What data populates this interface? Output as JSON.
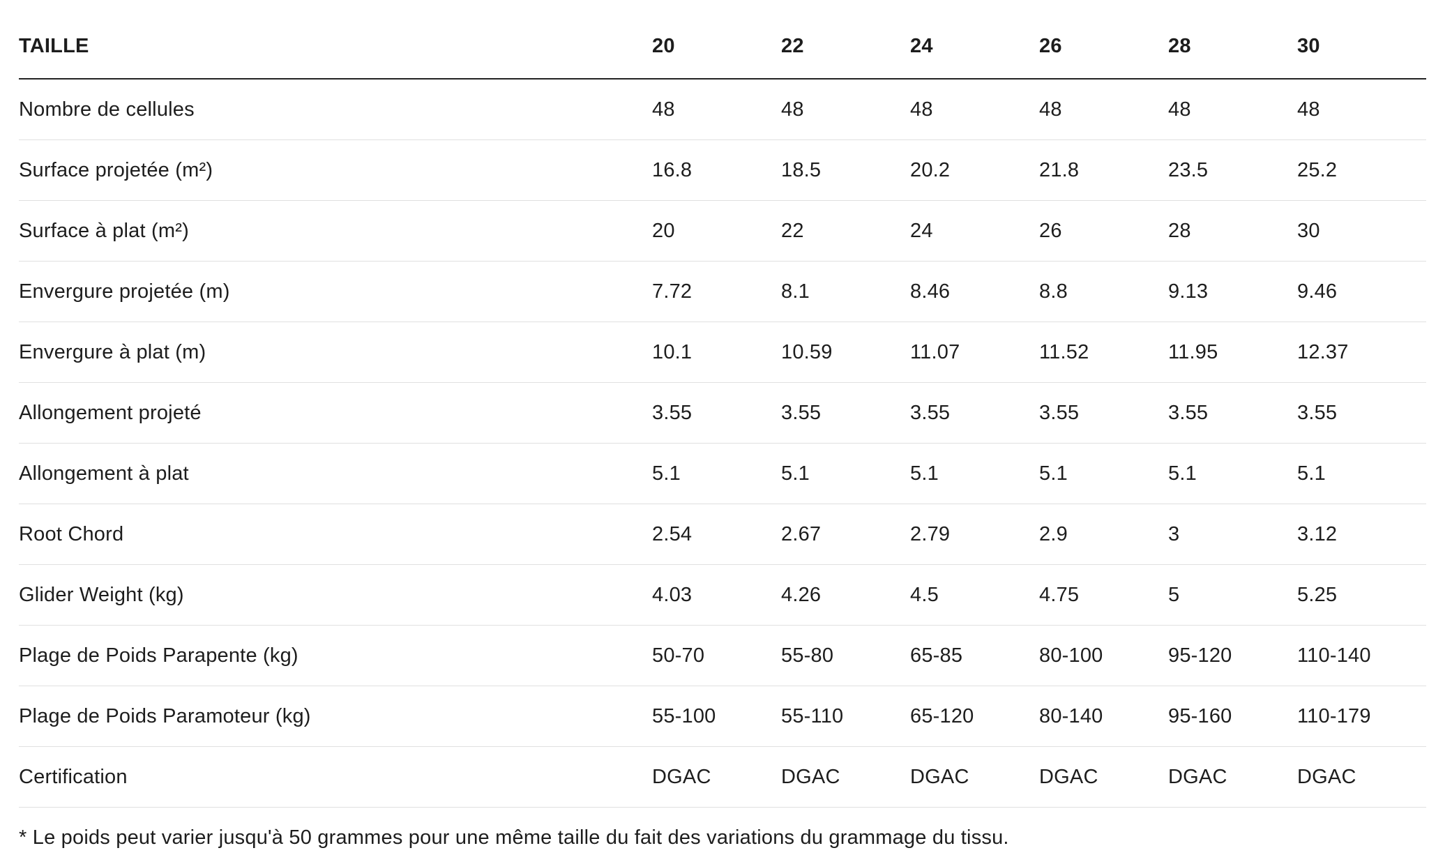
{
  "table": {
    "header": {
      "label": "TAILLE",
      "sizes": [
        "20",
        "22",
        "24",
        "26",
        "28",
        "30"
      ]
    },
    "rows": [
      {
        "label": "Nombre de cellules",
        "values": [
          "48",
          "48",
          "48",
          "48",
          "48",
          "48"
        ]
      },
      {
        "label": "Surface projetée (m²)",
        "values": [
          "16.8",
          "18.5",
          "20.2",
          "21.8",
          "23.5",
          "25.2"
        ]
      },
      {
        "label": "Surface à plat (m²)",
        "values": [
          "20",
          "22",
          "24",
          "26",
          "28",
          "30"
        ]
      },
      {
        "label": "Envergure projetée (m)",
        "values": [
          "7.72",
          "8.1",
          "8.46",
          "8.8",
          "9.13",
          "9.46"
        ]
      },
      {
        "label": "Envergure à plat (m)",
        "values": [
          "10.1",
          "10.59",
          "11.07",
          "11.52",
          "11.95",
          "12.37"
        ]
      },
      {
        "label": "Allongement projeté",
        "values": [
          "3.55",
          "3.55",
          "3.55",
          "3.55",
          "3.55",
          "3.55"
        ]
      },
      {
        "label": "Allongement à plat",
        "values": [
          "5.1",
          "5.1",
          "5.1",
          "5.1",
          "5.1",
          "5.1"
        ]
      },
      {
        "label": "Root Chord",
        "values": [
          "2.54",
          "2.67",
          "2.79",
          "2.9",
          "3",
          "3.12"
        ]
      },
      {
        "label": "Glider Weight (kg)",
        "values": [
          "4.03",
          "4.26",
          "4.5",
          "4.75",
          "5",
          "5.25"
        ]
      },
      {
        "label": "Plage de Poids Parapente (kg)",
        "values": [
          "50-70",
          "55-80",
          "65-85",
          "80-100",
          "95-120",
          "110-140"
        ]
      },
      {
        "label": "Plage de Poids Paramoteur (kg)",
        "values": [
          "55-100",
          "55-110",
          "65-120",
          "80-140",
          "95-160",
          "110-179"
        ]
      },
      {
        "label": "Certification",
        "values": [
          "DGAC",
          "DGAC",
          "DGAC",
          "DGAC",
          "DGAC",
          "DGAC"
        ]
      }
    ],
    "footnote": "* Le poids peut varier jusqu'à 50 grammes pour une même taille du fait des variations du grammage du tissu.",
    "colors": {
      "text": "#1d1d1d",
      "header_border": "#222222",
      "row_border": "#e0e0e0",
      "background": "#ffffff"
    }
  }
}
